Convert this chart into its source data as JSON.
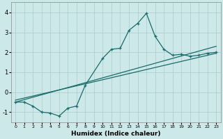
{
  "xlabel": "Humidex (Indice chaleur)",
  "xlim": [
    -0.5,
    23.5
  ],
  "ylim": [
    -1.5,
    4.5
  ],
  "xticks": [
    0,
    1,
    2,
    3,
    4,
    5,
    6,
    7,
    8,
    9,
    10,
    11,
    12,
    13,
    14,
    15,
    16,
    17,
    18,
    19,
    20,
    21,
    22,
    23
  ],
  "yticks": [
    -1,
    0,
    1,
    2,
    3,
    4
  ],
  "bg_color": "#cce8e8",
  "line_color": "#1a6b6b",
  "grid_color": "#aacccc",
  "line1_x": [
    0,
    1,
    2,
    3,
    4,
    5,
    6,
    7,
    8,
    10,
    11,
    12,
    13,
    14,
    15,
    16,
    17,
    18,
    19,
    20,
    21,
    22,
    23
  ],
  "line1_y": [
    -0.5,
    -0.5,
    -0.7,
    -1.0,
    -1.05,
    -1.2,
    -0.8,
    -0.7,
    0.35,
    1.7,
    2.15,
    2.2,
    3.1,
    3.45,
    3.95,
    2.8,
    2.15,
    1.85,
    1.9,
    1.8,
    1.85,
    1.95,
    2.0
  ],
  "line2_x": [
    0,
    23
  ],
  "line2_y": [
    -0.5,
    2.3
  ],
  "line3_x": [
    0,
    23
  ],
  "line3_y": [
    -0.4,
    1.95
  ]
}
